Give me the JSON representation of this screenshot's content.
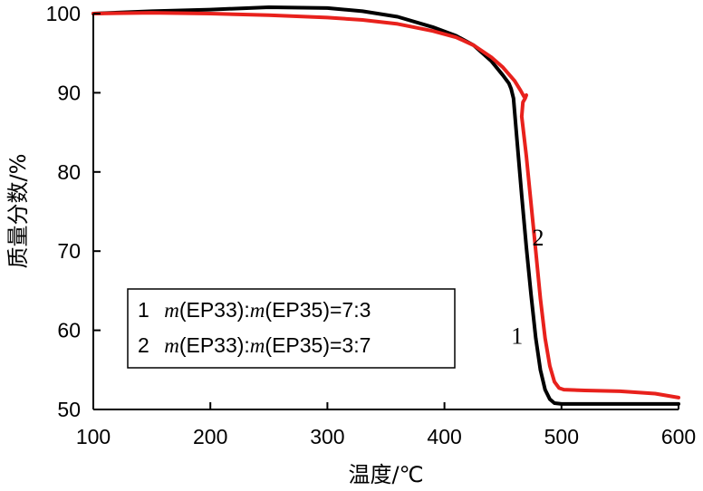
{
  "chart_data": {
    "type": "line",
    "xlabel": "温度/℃",
    "ylabel": "质量分数/%",
    "xlim": [
      100,
      600
    ],
    "ylim": [
      50,
      100
    ],
    "xticks": [
      100,
      200,
      300,
      400,
      500,
      600
    ],
    "yticks": [
      50,
      60,
      70,
      80,
      90,
      100
    ],
    "grid": false,
    "legend_position": "bottom-left",
    "legend": [
      {
        "num": "1",
        "m1": "m",
        "mid": "(EP33):",
        "m2": "m",
        "rest": "(EP35)=7:3"
      },
      {
        "num": "2",
        "m1": "m",
        "mid": "(EP33):",
        "m2": "m",
        "rest": "(EP35)=3:7"
      }
    ],
    "series": [
      {
        "name": "1",
        "color": "#000000",
        "x": [
          100,
          150,
          200,
          250,
          300,
          330,
          360,
          390,
          410,
          425,
          440,
          450,
          455,
          457,
          459,
          462,
          466,
          470,
          474,
          478,
          482,
          486,
          490,
          494,
          500,
          550,
          600
        ],
        "y": [
          100,
          100.3,
          100.5,
          100.8,
          100.7,
          100.3,
          99.6,
          98.3,
          97.2,
          96,
          94,
          92.2,
          91.2,
          90.5,
          89.3,
          84,
          77,
          70.5,
          64.5,
          59,
          55,
          52.5,
          51.3,
          50.8,
          50.7,
          50.7,
          50.7
        ]
      },
      {
        "name": "2",
        "color": "#e8211c",
        "x": [
          100,
          150,
          200,
          250,
          300,
          330,
          360,
          390,
          410,
          425,
          440,
          450,
          460,
          465,
          468,
          470,
          469,
          467,
          466,
          470,
          474,
          478,
          482,
          486,
          490,
          494,
          498,
          502,
          520,
          550,
          580,
          600
        ],
        "y": [
          100,
          100.1,
          100,
          99.8,
          99.5,
          99.2,
          98.7,
          97.8,
          97,
          96,
          94.5,
          93.2,
          91.5,
          90.3,
          89.5,
          89.7,
          89.3,
          88.8,
          87,
          82,
          76,
          70,
          64,
          59,
          55.5,
          53.5,
          52.7,
          52.5,
          52.4,
          52.3,
          52,
          51.5
        ]
      }
    ],
    "annotations": [
      {
        "text": "1",
        "x": 462,
        "y": 58.3
      },
      {
        "text": "2",
        "x": 480,
        "y": 70.7
      }
    ]
  }
}
